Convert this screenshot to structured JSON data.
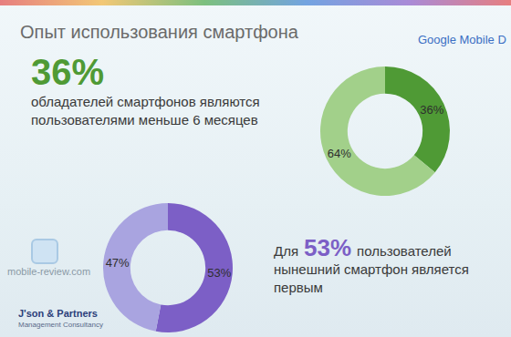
{
  "slide": {
    "title": "Опыт использования смартфона",
    "brand": "Google Mobile D",
    "watermark": "mobile-review.com",
    "footer": [
      "J'son & Partners",
      "Management Consultancy"
    ]
  },
  "chart_data": [
    {
      "type": "pie",
      "values": [
        36,
        64
      ],
      "value_labels": [
        "36%",
        "64%"
      ],
      "colors": [
        "#4f9a35",
        "#a2d08a"
      ],
      "data_labels": true,
      "annotations": {
        "highlight": "36%",
        "lines": [
          "обладателей смартфонов являются",
          "пользователями меньше 6 месяцев"
        ]
      }
    },
    {
      "type": "pie",
      "values": [
        53,
        47
      ],
      "value_labels": [
        "53%",
        "47%"
      ],
      "colors": [
        "#7c5fc6",
        "#a9a4e0"
      ],
      "data_labels": true,
      "annotations": {
        "prefix": "Для",
        "highlight": "53%",
        "suffix": "пользователей",
        "lines": [
          "нынешний смартфон является",
          "первым"
        ]
      }
    }
  ]
}
